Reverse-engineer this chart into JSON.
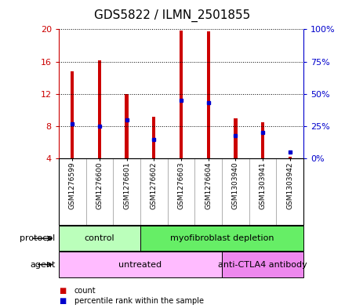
{
  "title": "GDS5822 / ILMN_2501855",
  "samples": [
    "GSM1276599",
    "GSM1276600",
    "GSM1276601",
    "GSM1276602",
    "GSM1276603",
    "GSM1276604",
    "GSM1303940",
    "GSM1303941",
    "GSM1303942"
  ],
  "counts": [
    14.8,
    16.2,
    12.0,
    9.2,
    19.8,
    19.7,
    9.0,
    8.5,
    4.2
  ],
  "percentiles": [
    27,
    25,
    30,
    15,
    45,
    43,
    18,
    20,
    5
  ],
  "ylim": [
    4,
    20
  ],
  "y2lim": [
    0,
    100
  ],
  "yticks": [
    4,
    8,
    12,
    16,
    20
  ],
  "y2ticks": [
    0,
    25,
    50,
    75,
    100
  ],
  "bar_color": "#cc0000",
  "dot_color": "#0000cc",
  "bar_bottom": 4,
  "bar_width": 0.12,
  "protocol_groups": [
    {
      "label": "control",
      "start": 0,
      "end": 3,
      "color": "#bbffbb"
    },
    {
      "label": "myofibroblast depletion",
      "start": 3,
      "end": 9,
      "color": "#66ee66"
    }
  ],
  "agent_groups": [
    {
      "label": "untreated",
      "start": 0,
      "end": 6,
      "color": "#ffbbff"
    },
    {
      "label": "anti-CTLA4 antibody",
      "start": 6,
      "end": 9,
      "color": "#ee88ee"
    }
  ],
  "title_fontsize": 11,
  "left_tick_color": "#cc0000",
  "right_tick_color": "#0000cc",
  "xlabel_bg": "#d8d8d8",
  "protocol_label": "protocol",
  "agent_label": "agent"
}
